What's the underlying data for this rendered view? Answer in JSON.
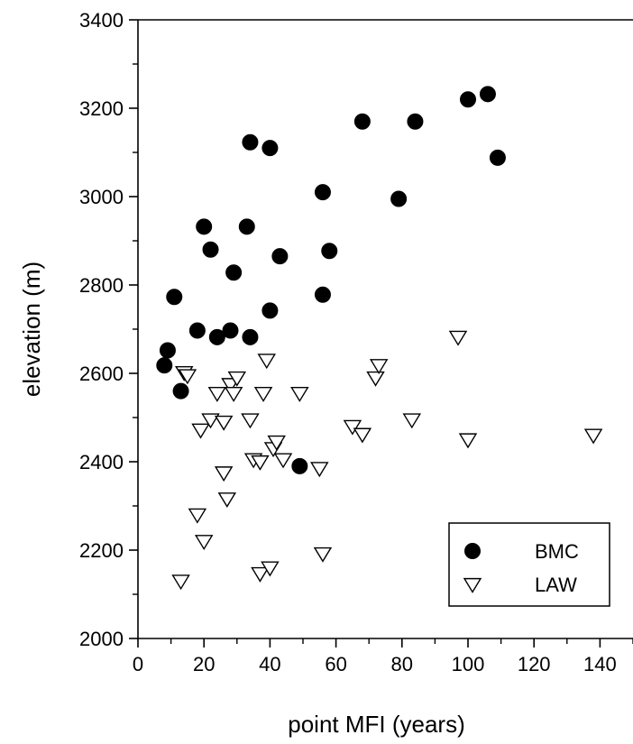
{
  "chart_data": {
    "type": "scatter",
    "title": "",
    "xlabel": "point MFI (years)",
    "ylabel": "elevation (m)",
    "xlim": [
      0,
      150
    ],
    "ylim": [
      2000,
      3400
    ],
    "xticks": [
      0,
      20,
      40,
      60,
      80,
      100,
      120,
      140
    ],
    "yticks": [
      2000,
      2200,
      2400,
      2600,
      2800,
      3000,
      3200,
      3400
    ],
    "grid": false,
    "legend": "bottom-right",
    "series": [
      {
        "name": "BMC",
        "marker": "filled-circle",
        "color": "#000000",
        "points": [
          [
            8,
            2618
          ],
          [
            9,
            2652
          ],
          [
            11,
            2773
          ],
          [
            13,
            2560
          ],
          [
            18,
            2697
          ],
          [
            20,
            2932
          ],
          [
            22,
            2880
          ],
          [
            24,
            2682
          ],
          [
            28,
            2697
          ],
          [
            29,
            2828
          ],
          [
            33,
            2932
          ],
          [
            34,
            2682
          ],
          [
            34,
            3123
          ],
          [
            40,
            3110
          ],
          [
            40,
            2742
          ],
          [
            43,
            2865
          ],
          [
            49,
            2390
          ],
          [
            56,
            3010
          ],
          [
            56,
            2778
          ],
          [
            58,
            2877
          ],
          [
            68,
            3170
          ],
          [
            79,
            2995
          ],
          [
            84,
            3170
          ],
          [
            100,
            3220
          ],
          [
            106,
            3232
          ],
          [
            109,
            3088
          ]
        ]
      },
      {
        "name": "LAW",
        "marker": "open-triangle-down",
        "color": "#000000",
        "points": [
          [
            13,
            2130
          ],
          [
            14,
            2602
          ],
          [
            15,
            2595
          ],
          [
            18,
            2280
          ],
          [
            19,
            2472
          ],
          [
            20,
            2220
          ],
          [
            22,
            2495
          ],
          [
            24,
            2555
          ],
          [
            26,
            2375
          ],
          [
            26,
            2490
          ],
          [
            27,
            2316
          ],
          [
            28,
            2575
          ],
          [
            29,
            2555
          ],
          [
            30,
            2590
          ],
          [
            34,
            2495
          ],
          [
            35,
            2405
          ],
          [
            37,
            2400
          ],
          [
            37,
            2147
          ],
          [
            38,
            2555
          ],
          [
            39,
            2630
          ],
          [
            40,
            2160
          ],
          [
            41,
            2430
          ],
          [
            42,
            2445
          ],
          [
            44,
            2405
          ],
          [
            49,
            2555
          ],
          [
            55,
            2385
          ],
          [
            56,
            2192
          ],
          [
            65,
            2480
          ],
          [
            68,
            2462
          ],
          [
            72,
            2590
          ],
          [
            73,
            2618
          ],
          [
            83,
            2495
          ],
          [
            97,
            2682
          ],
          [
            100,
            2450
          ],
          [
            138,
            2460
          ]
        ]
      }
    ]
  }
}
